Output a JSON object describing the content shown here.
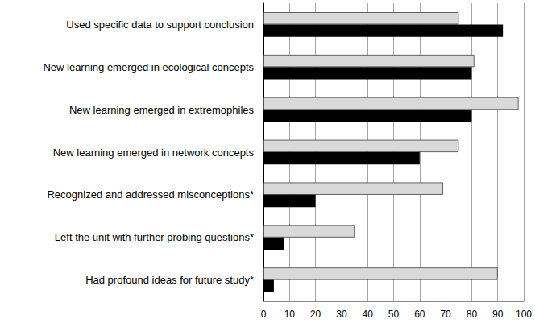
{
  "chart_data": {
    "type": "bar",
    "orientation": "horizontal",
    "categories": [
      "Used specific data to support conclusion",
      "New learning emerged in ecological concepts",
      "New learning emerged in extremophiles",
      "New learning emerged in network concepts",
      "Recognized and addressed misconceptions*",
      "Left the unit with further probing questions*",
      "Had profound ideas for future study*"
    ],
    "series": [
      {
        "color": "#d9d9d9",
        "values": [
          75,
          81,
          98,
          75,
          69,
          35,
          90
        ]
      },
      {
        "color": "#000000",
        "values": [
          92,
          80,
          80,
          60,
          20,
          8,
          4
        ]
      }
    ],
    "xlim": [
      0,
      100
    ],
    "xticks": [
      0,
      10,
      20,
      30,
      40,
      50,
      60,
      70,
      80,
      90,
      100
    ],
    "grid": true
  }
}
